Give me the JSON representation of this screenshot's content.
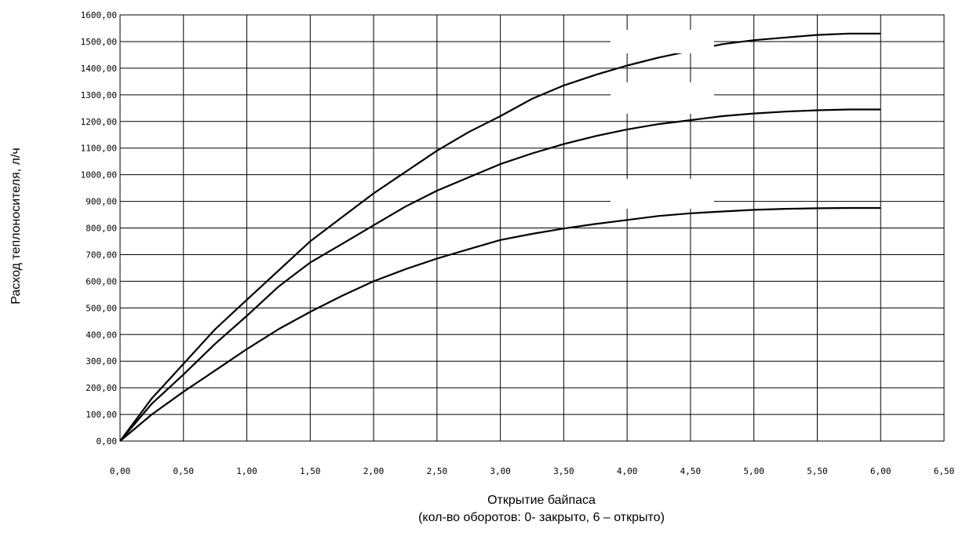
{
  "chart_data": {
    "type": "line",
    "title": "",
    "xlabel": "Открытие байпаса",
    "xlabel_sub": "(кол-во оборотов: 0- закрыто, 6 – открыто)",
    "ylabel": "Расход теплоносителя, л/ч",
    "xlim": [
      0,
      6.5
    ],
    "ylim": [
      0,
      1600
    ],
    "grid": true,
    "legend": "none",
    "line_color": "#000000",
    "x_ticks": [
      "0,00",
      "0,50",
      "1,00",
      "1,50",
      "2,00",
      "2,50",
      "3,00",
      "3,50",
      "4,00",
      "4,50",
      "5,00",
      "5,50",
      "6,00",
      "6,50"
    ],
    "y_ticks": [
      "0,00",
      "100,00",
      "200,00",
      "300,00",
      "400,00",
      "500,00",
      "600,00",
      "700,00",
      "800,00",
      "900,00",
      "1000,00",
      "1100,00",
      "1200,00",
      "1300,00",
      "1400,00",
      "1500,00",
      "1600,00"
    ],
    "x": [
      0,
      0.25,
      0.5,
      0.75,
      1.0,
      1.25,
      1.5,
      1.75,
      2.0,
      2.25,
      2.5,
      2.75,
      3.0,
      3.25,
      3.5,
      3.75,
      4.0,
      4.25,
      4.5,
      4.75,
      5.0,
      5.25,
      5.5,
      5.75,
      6.0
    ],
    "series": [
      {
        "values": [
          0,
          160,
          290,
          420,
          530,
          640,
          750,
          840,
          930,
          1010,
          1090,
          1160,
          1220,
          1285,
          1335,
          1375,
          1410,
          1440,
          1465,
          1490,
          1505,
          1515,
          1525,
          1530,
          1530
        ]
      },
      {
        "values": [
          0,
          140,
          250,
          365,
          470,
          580,
          670,
          740,
          810,
          880,
          940,
          990,
          1040,
          1080,
          1115,
          1145,
          1170,
          1190,
          1205,
          1220,
          1230,
          1237,
          1242,
          1245,
          1245
        ]
      },
      {
        "values": [
          0,
          100,
          185,
          265,
          345,
          420,
          485,
          545,
          600,
          645,
          685,
          720,
          755,
          778,
          798,
          815,
          830,
          845,
          855,
          862,
          868,
          872,
          874,
          875,
          875
        ]
      }
    ]
  }
}
